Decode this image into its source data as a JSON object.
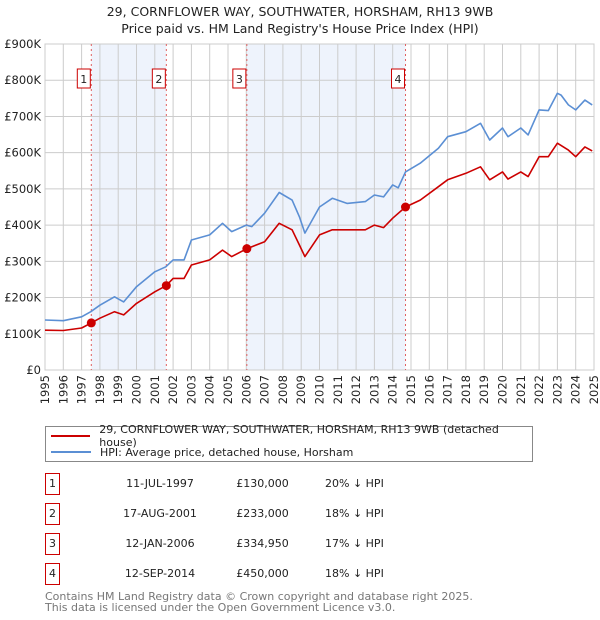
{
  "chart_data": {
    "type": "line",
    "title": "29, CORNFLOWER WAY, SOUTHWATER, HORSHAM, RH13 9WB",
    "subtitle": "Price paid vs. HM Land Registry's House Price Index (HPI)",
    "xlim": [
      1995,
      2025
    ],
    "ylim": [
      0,
      900000
    ],
    "yticks": [
      {
        "v": 0,
        "l": "£0"
      },
      {
        "v": 100000,
        "l": "£100K"
      },
      {
        "v": 200000,
        "l": "£200K"
      },
      {
        "v": 300000,
        "l": "£300K"
      },
      {
        "v": 400000,
        "l": "£400K"
      },
      {
        "v": 500000,
        "l": "£500K"
      },
      {
        "v": 600000,
        "l": "£600K"
      },
      {
        "v": 700000,
        "l": "£700K"
      },
      {
        "v": 800000,
        "l": "£800K"
      },
      {
        "v": 900000,
        "l": "£900K"
      }
    ],
    "xticks": [
      "1995",
      "1996",
      "1997",
      "1998",
      "1999",
      "2000",
      "2001",
      "2002",
      "2003",
      "2004",
      "2005",
      "2006",
      "2007",
      "2008",
      "2009",
      "2010",
      "2011",
      "2012",
      "2013",
      "2014",
      "2015",
      "2016",
      "2017",
      "2018",
      "2019",
      "2020",
      "2021",
      "2022",
      "2023",
      "2024",
      "2025"
    ],
    "grid": true,
    "series": [
      {
        "name": "29, CORNFLOWER WAY, SOUTHWATER, HORSHAM, RH13 9WB (detached house)",
        "color": "#cc0000",
        "x": [
          1995,
          1996,
          1997,
          1997.53,
          1998,
          1998.8,
          1999.3,
          2000,
          2001,
          2001.63,
          2002,
          2002.6,
          2003,
          2004,
          2004.7,
          2005.2,
          2006.03,
          2007,
          2007.8,
          2008.5,
          2008.9,
          2009.2,
          2010,
          2010.7,
          2011.5,
          2012.5,
          2013,
          2013.5,
          2014,
          2014.7,
          2015.5,
          2016.5,
          2017,
          2018,
          2018.8,
          2019.3,
          2020,
          2020.3,
          2021,
          2021.4,
          2022,
          2022.5,
          2023,
          2023.6,
          2024,
          2024.5,
          2024.9
        ],
        "y": [
          110000,
          109000,
          116000,
          130000,
          143000,
          161000,
          152000,
          184000,
          216000,
          233000,
          253000,
          253000,
          290000,
          304000,
          331000,
          313000,
          334950,
          354000,
          405000,
          387000,
          345000,
          313000,
          373000,
          387000,
          387000,
          387000,
          400000,
          393000,
          419000,
          450000,
          469000,
          506000,
          525000,
          543000,
          561000,
          525000,
          547000,
          527000,
          547000,
          534000,
          589000,
          589000,
          626000,
          607000,
          589000,
          616000,
          605000
        ]
      },
      {
        "name": "HPI: Average price, detached house, Horsham",
        "color": "#5b8fd4",
        "x": [
          1995,
          1996,
          1997,
          1997.5,
          1998,
          1998.8,
          1999.3,
          2000,
          2001,
          2001.6,
          2002,
          2002.6,
          2003,
          2004,
          2004.7,
          2005.2,
          2006,
          2006.3,
          2007,
          2007.8,
          2008.5,
          2008.9,
          2009.2,
          2010,
          2010.7,
          2011.5,
          2012.5,
          2013,
          2013.5,
          2014,
          2014.3,
          2014.7,
          2015.5,
          2016.5,
          2017,
          2018,
          2018.8,
          2019.3,
          2020,
          2020.3,
          2021,
          2021.4,
          2022,
          2022.5,
          2023,
          2023.2,
          2023.6,
          2024,
          2024.5,
          2024.9
        ],
        "y": [
          138000,
          136000,
          147000,
          161000,
          179000,
          202000,
          188000,
          230000,
          271000,
          285000,
          304000,
          304000,
          359000,
          373000,
          405000,
          382000,
          400000,
          396000,
          433000,
          490000,
          469000,
          423000,
          378000,
          450000,
          474000,
          460000,
          465000,
          483000,
          478000,
          511000,
          503000,
          547000,
          571000,
          612000,
          644000,
          658000,
          681000,
          635000,
          668000,
          644000,
          668000,
          649000,
          718000,
          716000,
          764000,
          759000,
          732000,
          718000,
          745000,
          732000
        ]
      }
    ],
    "sales": [
      {
        "n": "1",
        "x": 1997.53,
        "price": 130000
      },
      {
        "n": "2",
        "x": 2001.63,
        "price": 233000
      },
      {
        "n": "3",
        "x": 2006.03,
        "price": 334950
      },
      {
        "n": "4",
        "x": 2014.7,
        "price": 450000
      }
    ],
    "shaded": [
      [
        1997.53,
        2001.63
      ],
      [
        2006.03,
        2014.7
      ]
    ]
  },
  "legend": {
    "red": "29, CORNFLOWER WAY, SOUTHWATER, HORSHAM, RH13 9WB (detached house)",
    "blue": "HPI: Average price, detached house, Horsham"
  },
  "table": [
    {
      "n": "1",
      "date": "11-JUL-1997",
      "price": "£130,000",
      "hpi": "20% ↓ HPI"
    },
    {
      "n": "2",
      "date": "17-AUG-2001",
      "price": "£233,000",
      "hpi": "18% ↓ HPI"
    },
    {
      "n": "3",
      "date": "12-JAN-2006",
      "price": "£334,950",
      "hpi": "17% ↓ HPI"
    },
    {
      "n": "4",
      "date": "12-SEP-2014",
      "price": "£450,000",
      "hpi": "18% ↓ HPI"
    }
  ],
  "footer": {
    "line1": "Contains HM Land Registry data © Crown copyright and database right 2025.",
    "line2": "This data is licensed under the Open Government Licence v3.0."
  }
}
